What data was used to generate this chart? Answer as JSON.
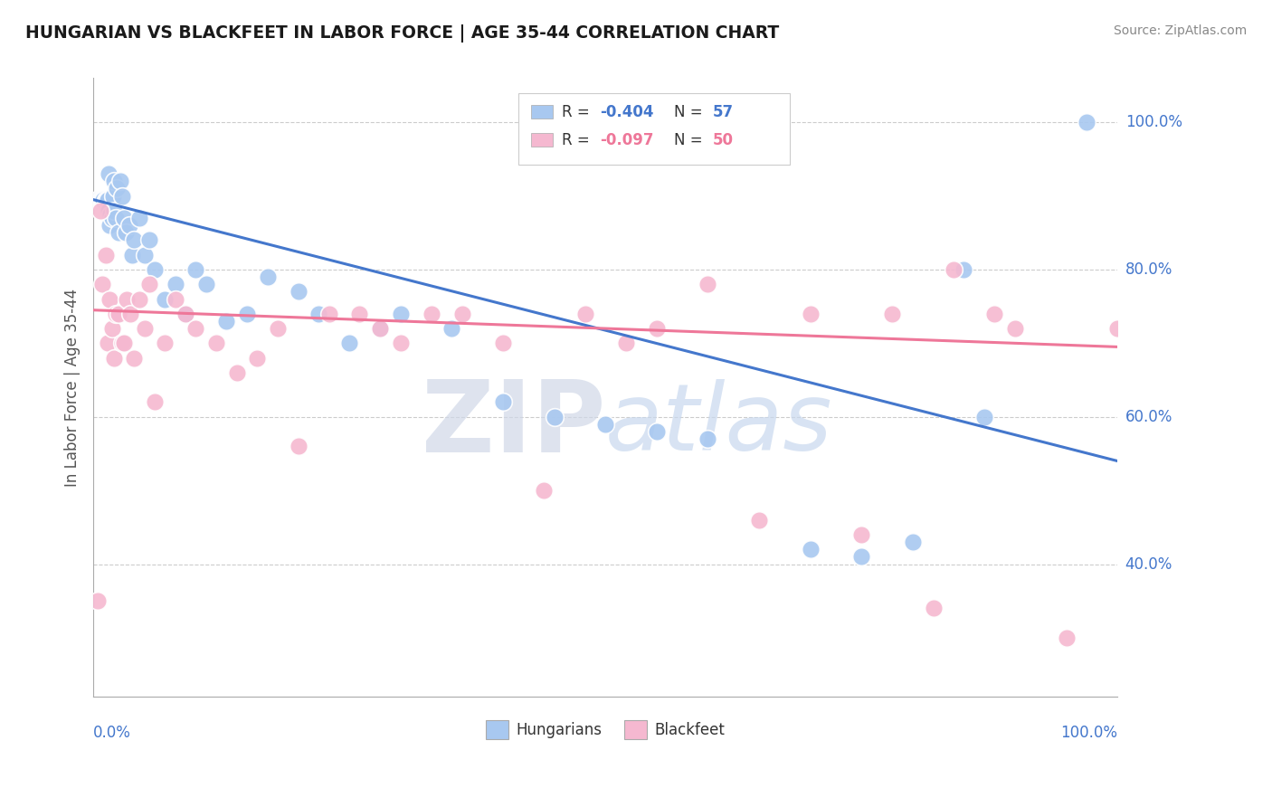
{
  "title": "HUNGARIAN VS BLACKFEET IN LABOR FORCE | AGE 35-44 CORRELATION CHART",
  "source": "Source: ZipAtlas.com",
  "ylabel": "In Labor Force | Age 35-44",
  "color_hungarian": "#A8C8F0",
  "color_blackfeet": "#F5B8D0",
  "color_line_hungarian": "#4477CC",
  "color_line_blackfeet": "#EE7799",
  "color_tick_label": "#4477CC",
  "watermark_zip": "ZIP",
  "watermark_atlas": "atlas",
  "hungarian_line_x0": 0.0,
  "hungarian_line_y0": 0.895,
  "hungarian_line_x1": 1.0,
  "hungarian_line_y1": 0.54,
  "blackfeet_line_x0": 0.0,
  "blackfeet_line_y0": 0.745,
  "blackfeet_line_x1": 1.0,
  "blackfeet_line_y1": 0.695,
  "xlim": [
    0.0,
    1.0
  ],
  "ylim": [
    0.22,
    1.06
  ],
  "ytick_values": [
    0.4,
    0.6,
    0.8,
    1.0
  ],
  "ytick_labels": [
    "40.0%",
    "60.0%",
    "80.0%",
    "100.0%"
  ],
  "legend_items": [
    {
      "label": "R = -0.404   N = 57",
      "color": "#A8C8F0",
      "r_val": "-0.404",
      "n_val": "57",
      "r_color": "#4477CC",
      "n_color": "#4477CC"
    },
    {
      "label": "R = -0.097   N = 50",
      "color": "#F5B8D0",
      "r_val": "-0.097",
      "n_val": "50",
      "r_color": "#EE7799",
      "n_color": "#333333"
    }
  ],
  "bottom_legend": [
    "Hungarians",
    "Blackfeet"
  ],
  "hungarian_pts_x": [
    0.003,
    0.005,
    0.007,
    0.008,
    0.009,
    0.01,
    0.01,
    0.012,
    0.013,
    0.014,
    0.015,
    0.015,
    0.016,
    0.017,
    0.018,
    0.019,
    0.02,
    0.02,
    0.022,
    0.023,
    0.025,
    0.026,
    0.028,
    0.03,
    0.032,
    0.035,
    0.038,
    0.04,
    0.045,
    0.05,
    0.055,
    0.06,
    0.07,
    0.08,
    0.09,
    0.1,
    0.11,
    0.13,
    0.15,
    0.17,
    0.2,
    0.22,
    0.25,
    0.28,
    0.3,
    0.35,
    0.4,
    0.45,
    0.5,
    0.55,
    0.6,
    0.7,
    0.75,
    0.8,
    0.85,
    0.87,
    0.97
  ],
  "hungarian_pts_y": [
    0.895,
    0.895,
    0.895,
    0.895,
    0.895,
    0.895,
    0.895,
    0.895,
    0.895,
    0.895,
    0.93,
    0.88,
    0.86,
    0.875,
    0.87,
    0.9,
    0.92,
    0.88,
    0.87,
    0.91,
    0.85,
    0.92,
    0.9,
    0.87,
    0.85,
    0.86,
    0.82,
    0.84,
    0.87,
    0.82,
    0.84,
    0.8,
    0.76,
    0.78,
    0.74,
    0.8,
    0.78,
    0.73,
    0.74,
    0.79,
    0.77,
    0.74,
    0.7,
    0.72,
    0.74,
    0.72,
    0.62,
    0.6,
    0.59,
    0.58,
    0.57,
    0.42,
    0.41,
    0.43,
    0.8,
    0.6,
    1.0
  ],
  "blackfeet_pts_x": [
    0.004,
    0.007,
    0.009,
    0.012,
    0.014,
    0.016,
    0.018,
    0.02,
    0.022,
    0.025,
    0.028,
    0.03,
    0.033,
    0.036,
    0.04,
    0.045,
    0.05,
    0.055,
    0.06,
    0.07,
    0.08,
    0.09,
    0.1,
    0.12,
    0.14,
    0.16,
    0.18,
    0.2,
    0.23,
    0.26,
    0.28,
    0.3,
    0.33,
    0.36,
    0.4,
    0.44,
    0.48,
    0.52,
    0.55,
    0.6,
    0.65,
    0.7,
    0.75,
    0.78,
    0.82,
    0.84,
    0.88,
    0.9,
    0.95,
    1.0
  ],
  "blackfeet_pts_y": [
    0.35,
    0.88,
    0.78,
    0.82,
    0.7,
    0.76,
    0.72,
    0.68,
    0.74,
    0.74,
    0.7,
    0.7,
    0.76,
    0.74,
    0.68,
    0.76,
    0.72,
    0.78,
    0.62,
    0.7,
    0.76,
    0.74,
    0.72,
    0.7,
    0.66,
    0.68,
    0.72,
    0.56,
    0.74,
    0.74,
    0.72,
    0.7,
    0.74,
    0.74,
    0.7,
    0.5,
    0.74,
    0.7,
    0.72,
    0.78,
    0.46,
    0.74,
    0.44,
    0.74,
    0.34,
    0.8,
    0.74,
    0.72,
    0.3,
    0.72
  ]
}
